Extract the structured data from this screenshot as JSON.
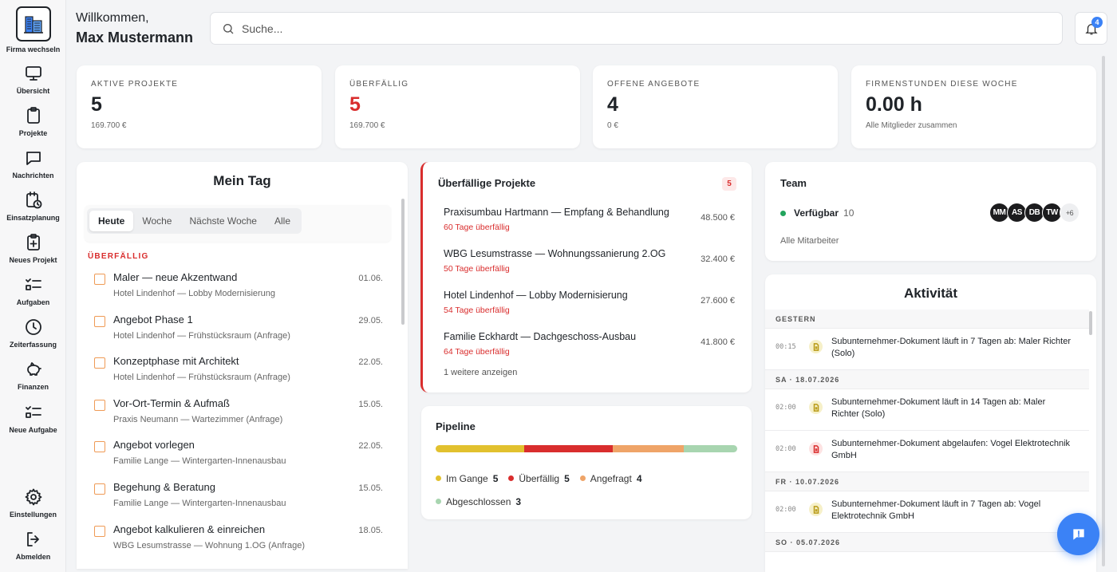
{
  "sidebar": {
    "company_switch_label": "Firma wechseln",
    "items": [
      {
        "label": "Übersicht",
        "icon": "monitor-icon"
      },
      {
        "label": "Projekte",
        "icon": "clipboard-icon"
      },
      {
        "label": "Nachrichten",
        "icon": "message-icon"
      },
      {
        "label": "Einsatzplanung",
        "icon": "calendar-clock-icon"
      },
      {
        "label": "Neues Projekt",
        "icon": "clipboard-plus-icon"
      },
      {
        "label": "Aufgaben",
        "icon": "checklist-icon"
      },
      {
        "label": "Zeiterfassung",
        "icon": "clock-icon"
      },
      {
        "label": "Finanzen",
        "icon": "piggy-bank-icon"
      },
      {
        "label": "Neue Aufgabe",
        "icon": "checklist-plus-icon"
      }
    ],
    "settings_label": "Einstellungen",
    "logout_label": "Abmelden"
  },
  "header": {
    "greeting": "Willkommen,",
    "user_name": "Max Mustermann",
    "search_placeholder": "Suche...",
    "notification_count": "4"
  },
  "stats": [
    {
      "title": "AKTIVE PROJEKTE",
      "value": "5",
      "sub": "169.700 €"
    },
    {
      "title": "ÜBERFÄLLIG",
      "value": "5",
      "sub": "169.700 €"
    },
    {
      "title": "OFFENE ANGEBOTE",
      "value": "4",
      "sub": "0 €"
    },
    {
      "title": "FIRMENSTUNDEN DIESE WOCHE",
      "value": "0.00 h",
      "sub": "Alle Mitglieder zusammen"
    }
  ],
  "mein_tag": {
    "title": "Mein Tag",
    "tabs": [
      "Heute",
      "Woche",
      "Nächste Woche",
      "Alle"
    ],
    "active_tab": "Heute",
    "section_label": "ÜBERFÄLLIG",
    "tasks": [
      {
        "title": "Maler — neue Akzentwand",
        "sub": "Hotel Lindenhof — Lobby Modernisierung",
        "date": "01.06."
      },
      {
        "title": "Angebot Phase 1",
        "sub": "Hotel Lindenhof — Frühstücksraum (Anfrage)",
        "date": "29.05."
      },
      {
        "title": "Konzeptphase mit Architekt",
        "sub": "Hotel Lindenhof — Frühstücksraum (Anfrage)",
        "date": "22.05."
      },
      {
        "title": "Vor-Ort-Termin & Aufmaß",
        "sub": "Praxis Neumann — Wartezimmer (Anfrage)",
        "date": "15.05."
      },
      {
        "title": "Angebot vorlegen",
        "sub": "Familie Lange — Wintergarten-Innenausbau",
        "date": "22.05."
      },
      {
        "title": "Begehung & Beratung",
        "sub": "Familie Lange — Wintergarten-Innenausbau",
        "date": "15.05."
      },
      {
        "title": "Angebot kalkulieren & einreichen",
        "sub": "WBG Lesumstrasse — Wohnung 1.OG (Anfrage)",
        "date": "18.05."
      }
    ]
  },
  "overdue_projects": {
    "title": "Überfällige Projekte",
    "count": "5",
    "items": [
      {
        "name": "Praxisumbau Hartmann — Empfang & Behandlung",
        "late": "60 Tage überfällig",
        "amount": "48.500 €"
      },
      {
        "name": "WBG Lesumstrasse — Wohnungssanierung 2.OG",
        "late": "50 Tage überfällig",
        "amount": "32.400 €"
      },
      {
        "name": "Hotel Lindenhof — Lobby Modernisierung",
        "late": "54 Tage überfällig",
        "amount": "27.600 €"
      },
      {
        "name": "Familie Eckhardt — Dachgeschoss-Ausbau",
        "late": "64 Tage überfällig",
        "amount": "41.800 €"
      }
    ],
    "more_label": "1 weitere anzeigen"
  },
  "pipeline": {
    "title": "Pipeline",
    "segments": [
      {
        "label": "Im Gange",
        "count": "5",
        "color": "#e2c12e"
      },
      {
        "label": "Überfällig",
        "count": "5",
        "color": "#d92d2d"
      },
      {
        "label": "Angefragt",
        "count": "4",
        "color": "#efa468"
      },
      {
        "label": "Abgeschlossen",
        "count": "3",
        "color": "#a8d5b0"
      }
    ]
  },
  "team": {
    "title": "Team",
    "available_label": "Verfügbar",
    "available_count": "10",
    "avatars": [
      "MM",
      "AS",
      "DB",
      "TW"
    ],
    "more_count": "+6",
    "all_label": "Alle Mitarbeiter"
  },
  "activity": {
    "title": "Aktivität",
    "groups": [
      {
        "day": "GESTERN",
        "entries": [
          {
            "time": "00:15",
            "text": "Subunternehmer-Dokument läuft in 7 Tagen ab: Maler Richter (Solo)",
            "kind": "warning"
          }
        ]
      },
      {
        "day": "SA · 18.07.2026",
        "entries": [
          {
            "time": "02:00",
            "text": "Subunternehmer-Dokument läuft in 14 Tagen ab: Maler Richter (Solo)",
            "kind": "warning"
          },
          {
            "time": "02:00",
            "text": "Subunternehmer-Dokument abgelaufen: Vogel Elektrotechnik GmbH",
            "kind": "error"
          }
        ]
      },
      {
        "day": "FR · 10.07.2026",
        "entries": [
          {
            "time": "02:00",
            "text": "Subunternehmer-Dokument läuft in 7 Tagen ab: Vogel Elektrotechnik GmbH",
            "kind": "warning"
          }
        ]
      },
      {
        "day": "SO · 05.07.2026",
        "entries": []
      }
    ]
  },
  "colors": {
    "accent": "#3b82f6",
    "danger": "#d92d2d",
    "checkbox": "#ef9a55",
    "available": "#22a45d"
  }
}
